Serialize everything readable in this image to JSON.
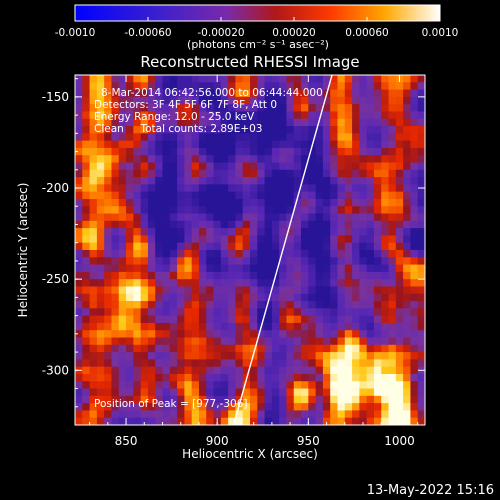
{
  "chart_data": {
    "type": "heatmap",
    "title": "Reconstructed RHESSI Image",
    "xlabel": "Heliocentric X (arcsec)",
    "ylabel": "Heliocentric Y (arcsec)",
    "xlim": [
      822,
      1014
    ],
    "ylim": [
      -330,
      -138
    ],
    "xticks": [
      850,
      900,
      950,
      1000
    ],
    "yticks": [
      -150,
      -200,
      -250,
      -300
    ],
    "grid": false,
    "colorbar": {
      "label": "(photons cm⁻² s⁻¹ asec⁻²)",
      "range": [
        -0.001,
        0.001
      ],
      "ticks": [
        "-0.0010",
        "-0.00060",
        "-0.00020",
        "0.00020",
        "0.00060",
        "0.0010"
      ]
    },
    "annotations": [
      "8-Mar-2014 06:42:56.000 to 06:44:44.000",
      "Detectors: 3F 4F 5F 6F 7F 8F, Att 0",
      "Energy Range: 12.0 - 25.0 keV",
      "Clean     Total counts: 2.89E+03"
    ],
    "peak_label": "Position of Peak = [977,-306]",
    "peak": [
      977,
      -306
    ],
    "limb_line": [
      [
        909,
        -330
      ],
      [
        963,
        -138
      ]
    ],
    "footer": "13-May-2022 15:16"
  }
}
